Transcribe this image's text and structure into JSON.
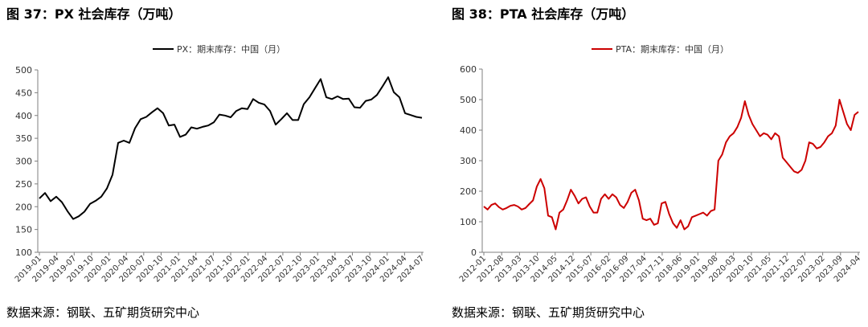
{
  "panels": [
    {
      "title": "图 37：PX 社会库存（万吨）",
      "source": "数据来源：钢联、五矿期货研究中心"
    },
    {
      "title": "图 38：PTA 社会库存（万吨）",
      "source": "数据来源：钢联、五矿期货研究中心"
    }
  ],
  "chart_data": [
    {
      "type": "line",
      "title": "",
      "xlabel": "",
      "ylabel": "",
      "ylim": [
        100,
        500
      ],
      "yticks": [
        100,
        150,
        200,
        250,
        300,
        350,
        400,
        450,
        500
      ],
      "grid": false,
      "legend": "top-center",
      "color": "#000000",
      "x_tick_labels": [
        "2019-01",
        "2019-04",
        "2019-07",
        "2019-10",
        "2020-01",
        "2020-04",
        "2020-07",
        "2020-10",
        "2021-01",
        "2021-04",
        "2021-07",
        "2021-10",
        "2022-01",
        "2022-04",
        "2022-07",
        "2022-10",
        "2023-01",
        "2023-04",
        "2023-07",
        "2023-10",
        "2024-01",
        "2024-04",
        "2024-07"
      ],
      "series": [
        {
          "name": "PX：期末库存：中国（月）",
          "x": [
            "2019-01",
            "2019-02",
            "2019-03",
            "2019-04",
            "2019-05",
            "2019-06",
            "2019-07",
            "2019-08",
            "2019-09",
            "2019-10",
            "2019-11",
            "2019-12",
            "2020-01",
            "2020-02",
            "2020-03",
            "2020-04",
            "2020-05",
            "2020-06",
            "2020-07",
            "2020-08",
            "2020-09",
            "2020-10",
            "2020-11",
            "2020-12",
            "2021-01",
            "2021-02",
            "2021-03",
            "2021-04",
            "2021-05",
            "2021-06",
            "2021-07",
            "2021-08",
            "2021-09",
            "2021-10",
            "2021-11",
            "2021-12",
            "2022-01",
            "2022-02",
            "2022-03",
            "2022-04",
            "2022-05",
            "2022-06",
            "2022-07",
            "2022-08",
            "2022-09",
            "2022-10",
            "2022-11",
            "2022-12",
            "2023-01",
            "2023-02",
            "2023-03",
            "2023-04",
            "2023-05",
            "2023-06",
            "2023-07",
            "2023-08",
            "2023-09",
            "2023-10",
            "2023-11",
            "2023-12",
            "2024-01",
            "2024-02",
            "2024-03",
            "2024-04",
            "2024-05",
            "2024-06",
            "2024-07",
            "2024-08",
            "2024-09"
          ],
          "values": [
            218,
            230,
            212,
            222,
            210,
            190,
            173,
            179,
            189,
            206,
            213,
            222,
            240,
            270,
            340,
            345,
            340,
            372,
            392,
            397,
            407,
            416,
            405,
            378,
            380,
            353,
            358,
            374,
            371,
            375,
            378,
            385,
            402,
            400,
            396,
            410,
            416,
            414,
            436,
            428,
            424,
            410,
            380,
            392,
            405,
            390,
            390,
            425,
            440,
            460,
            480,
            440,
            436,
            442,
            436,
            437,
            418,
            417,
            432,
            435,
            445,
            464,
            484,
            451,
            440,
            405,
            401,
            397,
            395
          ]
        }
      ]
    },
    {
      "type": "line",
      "title": "",
      "xlabel": "",
      "ylabel": "",
      "ylim": [
        0,
        600
      ],
      "yticks": [
        0,
        100,
        200,
        300,
        400,
        500,
        600
      ],
      "grid": false,
      "legend": "top-center",
      "color": "#cc0000",
      "x_tick_labels": [
        "2012-01",
        "2012-08",
        "2013-03",
        "2013-10",
        "2014-05",
        "2014-12",
        "2015-07",
        "2016-02",
        "2016-09",
        "2017-04",
        "2017-11",
        "2018-06",
        "2019-01",
        "2019-08",
        "2020-03",
        "2020-10",
        "2021-05",
        "2021-12",
        "2022-07",
        "2023-02",
        "2023-09",
        "2024-04"
      ],
      "series": [
        {
          "name": "PTA：期末库存：中国（月）",
          "values": [
            150,
            140,
            155,
            160,
            148,
            140,
            145,
            152,
            155,
            150,
            140,
            145,
            158,
            170,
            215,
            240,
            210,
            120,
            115,
            75,
            130,
            140,
            170,
            205,
            185,
            160,
            175,
            180,
            150,
            130,
            130,
            175,
            190,
            175,
            190,
            180,
            155,
            145,
            165,
            195,
            205,
            170,
            110,
            105,
            110,
            90,
            95,
            160,
            165,
            125,
            95,
            80,
            105,
            75,
            85,
            115,
            120,
            125,
            130,
            120,
            135,
            140,
            300,
            320,
            360,
            380,
            390,
            410,
            440,
            495,
            450,
            420,
            400,
            380,
            390,
            385,
            370,
            390,
            380,
            310,
            295,
            280,
            265,
            260,
            270,
            300,
            360,
            355,
            340,
            345,
            360,
            380,
            390,
            415,
            500,
            460,
            420,
            400,
            450,
            460
          ]
        }
      ]
    }
  ]
}
